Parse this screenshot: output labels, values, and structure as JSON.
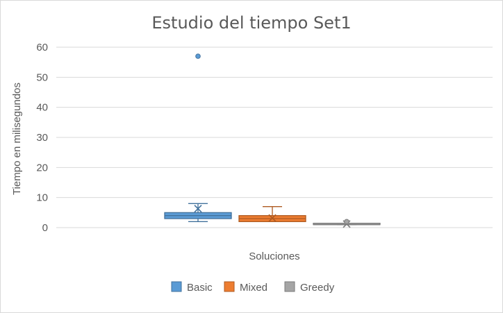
{
  "chart_data": {
    "type": "box",
    "title": "Estudio del tiempo Set1",
    "xlabel": "Soluciones",
    "ylabel": "Tiempo en milisegundos",
    "ylim": [
      0,
      60
    ],
    "yticks": [
      0,
      10,
      20,
      30,
      40,
      50,
      60
    ],
    "grid": true,
    "legend_position": "bottom",
    "series": [
      {
        "name": "Basic",
        "color": "#5b9bd5",
        "stroke": "#41719c",
        "min": 2,
        "q1": 3,
        "median": 4,
        "q3": 5,
        "max": 8,
        "mean": 6.3,
        "outliers": [
          57
        ]
      },
      {
        "name": "Mixed",
        "color": "#ed7d31",
        "stroke": "#ae5a21",
        "min": 2,
        "q1": 2,
        "median": 3,
        "q3": 4,
        "max": 7,
        "mean": 3.2,
        "outliers": []
      },
      {
        "name": "Greedy",
        "color": "#a5a5a5",
        "stroke": "#7b7b7b",
        "min": 1,
        "q1": 1,
        "median": 1,
        "q3": 1,
        "max": 1,
        "mean": 1.2,
        "outliers": [
          2
        ]
      }
    ]
  }
}
